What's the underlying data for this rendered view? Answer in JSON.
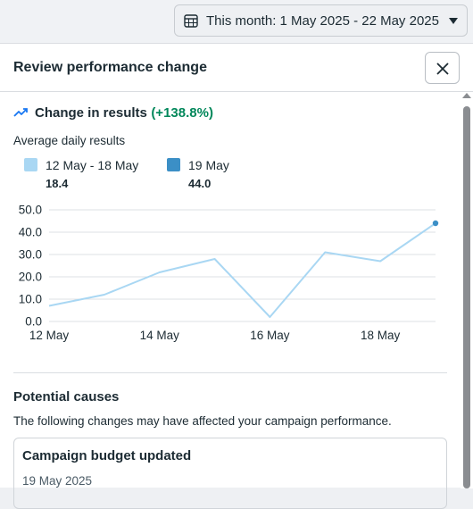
{
  "date_range": {
    "label": "This month: 1 May 2025 - 22 May 2025"
  },
  "panel": {
    "title": "Review performance change"
  },
  "change": {
    "title": "Change in results",
    "percent": "(+138.8%)"
  },
  "average_label": "Average daily results",
  "legend": [
    {
      "name": "12 May - 18 May",
      "value": "18.4",
      "color": "#a9d7f3"
    },
    {
      "name": "19 May",
      "value": "44.0",
      "color": "#3b8fc6"
    }
  ],
  "chart_data": {
    "type": "line",
    "x": [
      "12 May",
      "13 May",
      "14 May",
      "15 May",
      "16 May",
      "17 May",
      "18 May",
      "19 May"
    ],
    "x_tick_labels": [
      "12 May",
      "14 May",
      "16 May",
      "18 May"
    ],
    "series": [
      {
        "values": [
          7,
          12,
          22,
          28,
          2,
          31,
          27,
          44
        ],
        "color": "#a9d7f3",
        "highlight_last_color": "#3b8fc6"
      }
    ],
    "yticks": [
      "0.0",
      "10.0",
      "20.0",
      "30.0",
      "40.0",
      "50.0"
    ],
    "ylim": [
      0,
      50
    ],
    "grid": true
  },
  "causes": {
    "title": "Potential causes",
    "description": "The following changes may have affected your campaign performance.",
    "items": [
      {
        "title": "Campaign budget updated",
        "date": "19 May 2025"
      }
    ]
  },
  "colors": {
    "positive": "#00875a",
    "accent": "#3b8fc6"
  }
}
